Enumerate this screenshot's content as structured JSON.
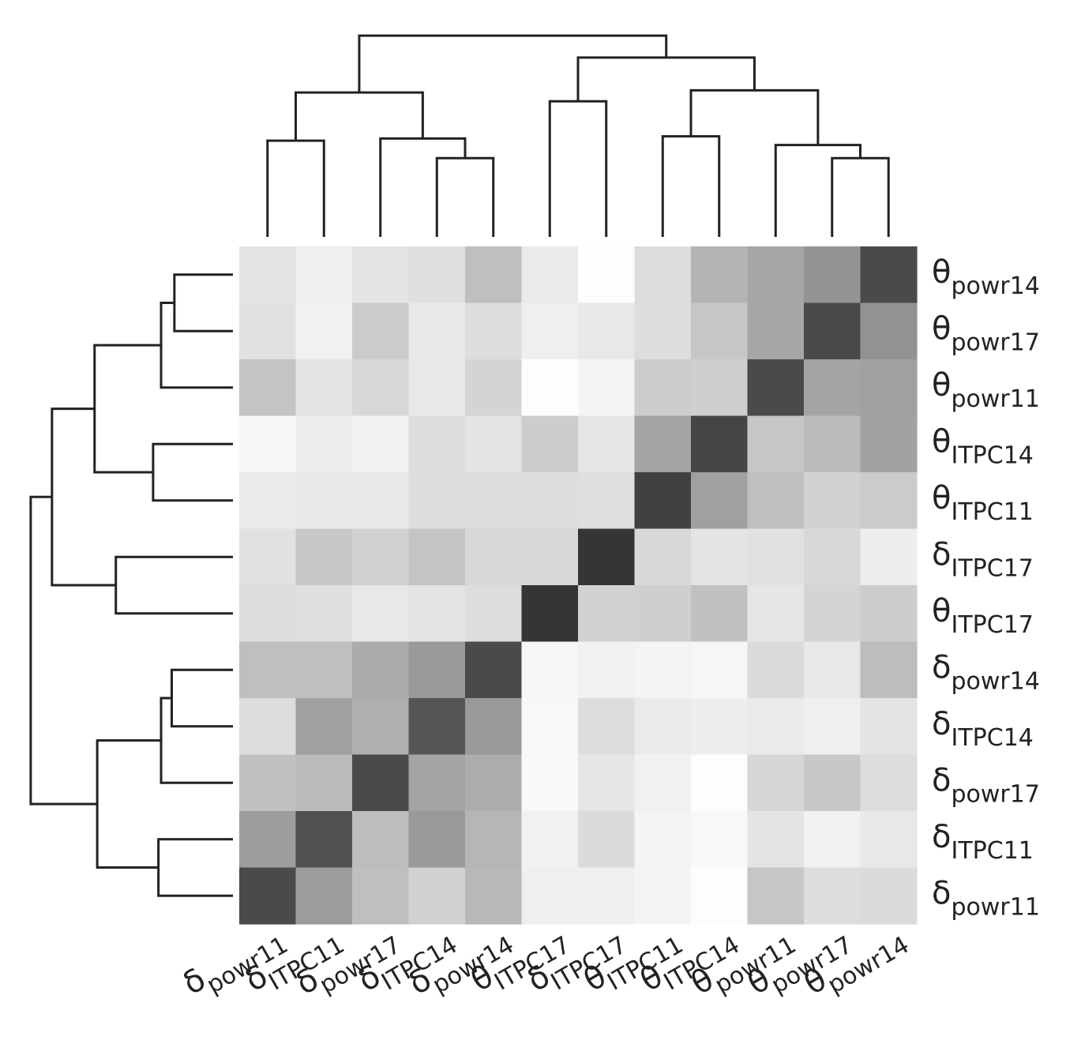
{
  "chart_data": {
    "type": "heatmap",
    "color_scale": {
      "low": "#ffffff",
      "high": "#1e1b1c"
    },
    "row_labels": [
      {
        "greek": "θ",
        "sub": "powr14"
      },
      {
        "greek": "θ",
        "sub": "powr17"
      },
      {
        "greek": "θ",
        "sub": "powr11"
      },
      {
        "greek": "θ",
        "sub": "ITPC14"
      },
      {
        "greek": "θ",
        "sub": "ITPC11"
      },
      {
        "greek": "δ",
        "sub": "ITPC17"
      },
      {
        "greek": "θ",
        "sub": "ITPC17"
      },
      {
        "greek": "δ",
        "sub": "powr14"
      },
      {
        "greek": "δ",
        "sub": "ITPC14"
      },
      {
        "greek": "δ",
        "sub": "powr17"
      },
      {
        "greek": "δ",
        "sub": "ITPC11"
      },
      {
        "greek": "δ",
        "sub": "powr11"
      }
    ],
    "col_labels": [
      {
        "greek": "δ",
        "sub": "powr11"
      },
      {
        "greek": "δ",
        "sub": "ITPC11"
      },
      {
        "greek": "δ",
        "sub": "powr17"
      },
      {
        "greek": "δ",
        "sub": "ITPC14"
      },
      {
        "greek": "δ",
        "sub": "powr14"
      },
      {
        "greek": "θ",
        "sub": "ITPC17"
      },
      {
        "greek": "δ",
        "sub": "ITPC17"
      },
      {
        "greek": "θ",
        "sub": "ITPC11"
      },
      {
        "greek": "θ",
        "sub": "ITPC14"
      },
      {
        "greek": "θ",
        "sub": "powr11"
      },
      {
        "greek": "θ",
        "sub": "powr17"
      },
      {
        "greek": "θ",
        "sub": "powr14"
      }
    ],
    "values": [
      [
        0.12,
        0.07,
        0.12,
        0.14,
        0.28,
        0.09,
        0.01,
        0.15,
        0.33,
        0.39,
        0.47,
        0.8
      ],
      [
        0.13,
        0.06,
        0.23,
        0.1,
        0.15,
        0.07,
        0.1,
        0.15,
        0.25,
        0.39,
        0.8,
        0.48
      ],
      [
        0.26,
        0.12,
        0.17,
        0.1,
        0.19,
        0.01,
        0.05,
        0.22,
        0.21,
        0.8,
        0.4,
        0.42
      ],
      [
        0.04,
        0.08,
        0.06,
        0.15,
        0.12,
        0.22,
        0.11,
        0.4,
        0.82,
        0.25,
        0.3,
        0.41
      ],
      [
        0.09,
        0.1,
        0.1,
        0.15,
        0.15,
        0.15,
        0.14,
        0.84,
        0.42,
        0.28,
        0.2,
        0.23
      ],
      [
        0.13,
        0.24,
        0.2,
        0.26,
        0.17,
        0.17,
        0.89,
        0.17,
        0.12,
        0.13,
        0.17,
        0.08
      ],
      [
        0.15,
        0.14,
        0.1,
        0.12,
        0.15,
        0.89,
        0.2,
        0.21,
        0.27,
        0.11,
        0.19,
        0.22
      ],
      [
        0.28,
        0.28,
        0.37,
        0.45,
        0.8,
        0.04,
        0.06,
        0.05,
        0.04,
        0.16,
        0.1,
        0.29
      ],
      [
        0.15,
        0.42,
        0.35,
        0.75,
        0.45,
        0.03,
        0.15,
        0.09,
        0.08,
        0.09,
        0.07,
        0.12
      ],
      [
        0.27,
        0.3,
        0.8,
        0.4,
        0.36,
        0.03,
        0.11,
        0.06,
        0.01,
        0.18,
        0.24,
        0.15
      ],
      [
        0.43,
        0.77,
        0.29,
        0.45,
        0.32,
        0.06,
        0.16,
        0.05,
        0.03,
        0.12,
        0.06,
        0.1
      ],
      [
        0.8,
        0.43,
        0.28,
        0.2,
        0.31,
        0.07,
        0.07,
        0.05,
        0.01,
        0.25,
        0.15,
        0.16
      ]
    ],
    "row_dendrogram": {
      "merges": [
        [
          0,
          1
        ],
        [
          12,
          2
        ],
        [
          3,
          4
        ],
        [
          5,
          6
        ],
        [
          13,
          14
        ],
        [
          15,
          16
        ],
        [
          7,
          8
        ],
        [
          18,
          9
        ],
        [
          10,
          11
        ],
        [
          19,
          20
        ],
        [
          17,
          21
        ]
      ],
      "heights": [
        0.22,
        0.27,
        0.3,
        0.44,
        0.52,
        0.68,
        0.23,
        0.27,
        0.28,
        0.51,
        0.76
      ]
    },
    "col_dendrogram": {
      "merges": [
        [
          0,
          1
        ],
        [
          3,
          4
        ],
        [
          2,
          13
        ],
        [
          12,
          14
        ],
        [
          5,
          6
        ],
        [
          7,
          8
        ],
        [
          10,
          11
        ],
        [
          9,
          18
        ],
        [
          17,
          19
        ],
        [
          16,
          20
        ],
        [
          15,
          21
        ]
      ],
      "heights": [
        0.44,
        0.36,
        0.45,
        0.66,
        0.62,
        0.46,
        0.36,
        0.42,
        0.67,
        0.82,
        0.92
      ]
    },
    "title": "",
    "xlabel": "",
    "ylabel": "",
    "legend": "none"
  }
}
